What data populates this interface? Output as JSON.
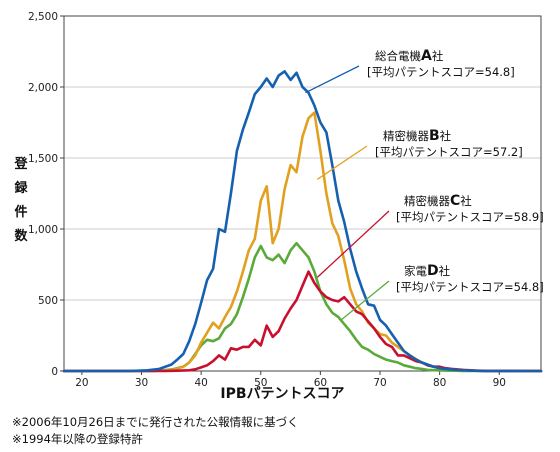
{
  "chart_data": {
    "type": "line",
    "title": "",
    "xlabel": "IPBパテントスコア",
    "ylabel": [
      "登",
      "録",
      "件",
      "数"
    ],
    "xlim": [
      17,
      97
    ],
    "ylim": [
      0,
      2500
    ],
    "xticks": [
      "20",
      "30",
      "40",
      "50",
      "60",
      "70",
      "80",
      "90"
    ],
    "yticks": [
      "0",
      "500",
      "1,000",
      "1,500",
      "2,000",
      "2,500"
    ],
    "grid": "horizontal",
    "series": [
      {
        "name": "総合電機A社",
        "label_main": "総合電機",
        "label_letter": "A",
        "label_suffix": "社",
        "label_sub": "[平均パテントスコア=54.8]",
        "color": "#1560b0",
        "x": [
          17,
          28,
          31,
          33,
          34,
          35,
          36,
          37,
          38,
          39,
          40,
          41,
          42,
          43,
          44,
          45,
          46,
          47,
          48,
          49,
          50,
          51,
          52,
          53,
          54,
          55,
          56,
          57,
          58,
          59,
          60,
          61,
          62,
          63,
          64,
          65,
          66,
          67,
          68,
          69,
          70,
          71,
          72,
          73,
          74,
          75,
          76,
          77,
          78,
          79,
          80,
          81,
          82,
          83,
          84,
          85,
          86,
          87,
          88,
          90,
          97
        ],
        "y": [
          0,
          0,
          5,
          15,
          30,
          45,
          80,
          120,
          210,
          330,
          480,
          640,
          720,
          1000,
          980,
          1250,
          1550,
          1700,
          1820,
          1950,
          2000,
          2060,
          2000,
          2080,
          2110,
          2050,
          2100,
          2000,
          1960,
          1870,
          1750,
          1680,
          1450,
          1200,
          1050,
          860,
          700,
          580,
          470,
          460,
          360,
          320,
          260,
          200,
          140,
          110,
          80,
          60,
          45,
          30,
          20,
          15,
          10,
          7,
          5,
          3,
          2,
          1,
          0,
          0,
          0
        ]
      },
      {
        "name": "精密機器B社",
        "label_main": "精密機器",
        "label_letter": "B",
        "label_suffix": "社",
        "label_sub": "[平均パテントスコア=57.2]",
        "color": "#e2a01f",
        "x": [
          17,
          30,
          35,
          37,
          38,
          39,
          40,
          41,
          42,
          43,
          44,
          45,
          46,
          47,
          48,
          49,
          50,
          51,
          52,
          53,
          54,
          55,
          56,
          57,
          58,
          59,
          60,
          61,
          62,
          63,
          64,
          65,
          66,
          67,
          68,
          69,
          70,
          71,
          72,
          73,
          74,
          75,
          76,
          77,
          78,
          79,
          80,
          82,
          84,
          86,
          97
        ],
        "y": [
          0,
          0,
          5,
          30,
          60,
          110,
          200,
          270,
          340,
          300,
          380,
          450,
          560,
          700,
          850,
          930,
          1200,
          1300,
          900,
          1000,
          1280,
          1450,
          1400,
          1650,
          1780,
          1820,
          1550,
          1250,
          1040,
          950,
          780,
          580,
          470,
          420,
          340,
          300,
          260,
          250,
          200,
          170,
          140,
          110,
          85,
          60,
          45,
          30,
          20,
          10,
          5,
          2,
          0
        ]
      },
      {
        "name": "精密機器C社",
        "label_main": "精密機器",
        "label_letter": "C",
        "label_suffix": "社",
        "label_sub": "[平均パテントスコア=58.9]",
        "color": "#c8102e",
        "x": [
          17,
          34,
          36,
          38,
          39,
          40,
          41,
          42,
          43,
          44,
          45,
          46,
          47,
          48,
          49,
          50,
          51,
          52,
          53,
          54,
          55,
          56,
          57,
          58,
          59,
          60,
          61,
          62,
          63,
          64,
          65,
          66,
          67,
          68,
          69,
          70,
          71,
          72,
          73,
          74,
          75,
          76,
          77,
          78,
          79,
          80,
          81,
          82,
          84,
          86,
          88,
          97
        ],
        "y": [
          0,
          0,
          2,
          5,
          12,
          25,
          40,
          70,
          110,
          80,
          160,
          150,
          170,
          170,
          220,
          180,
          320,
          240,
          280,
          370,
          440,
          500,
          600,
          700,
          620,
          560,
          520,
          500,
          490,
          520,
          470,
          420,
          400,
          350,
          300,
          240,
          190,
          170,
          110,
          110,
          90,
          70,
          60,
          40,
          30,
          30,
          20,
          15,
          8,
          3,
          1,
          0
        ]
      },
      {
        "name": "家電D社",
        "label_main": "家電",
        "label_letter": "D",
        "label_suffix": "社",
        "label_sub": "[平均パテントスコア=54.8]",
        "color": "#5aaa3a",
        "x": [
          17,
          32,
          35,
          37,
          38,
          39,
          40,
          41,
          42,
          43,
          44,
          45,
          46,
          47,
          48,
          49,
          50,
          51,
          52,
          53,
          54,
          55,
          56,
          57,
          58,
          59,
          60,
          61,
          62,
          63,
          64,
          65,
          66,
          67,
          68,
          69,
          70,
          71,
          72,
          73,
          74,
          75,
          76,
          77,
          78,
          80,
          82,
          84,
          97
        ],
        "y": [
          0,
          0,
          10,
          30,
          60,
          120,
          180,
          220,
          210,
          230,
          300,
          330,
          400,
          520,
          650,
          800,
          880,
          800,
          780,
          820,
          760,
          850,
          900,
          850,
          800,
          700,
          560,
          470,
          410,
          380,
          330,
          280,
          220,
          170,
          150,
          120,
          100,
          80,
          70,
          60,
          40,
          30,
          20,
          15,
          8,
          4,
          2,
          0,
          0
        ]
      }
    ]
  },
  "notes": [
    "※2006年10月26日までに発行された公報情報に基づく",
    "※1994年以降の登録特許"
  ]
}
